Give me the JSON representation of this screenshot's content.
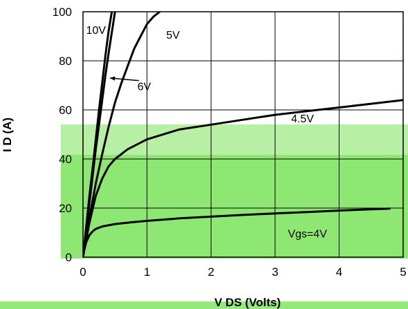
{
  "chart_data": {
    "type": "line",
    "title": "",
    "xlabel": "V DS (Volts)",
    "ylabel": "I D (A)",
    "xlim": [
      0,
      5
    ],
    "ylim": [
      0,
      100
    ],
    "x_ticks": [
      "0",
      "1",
      "2",
      "3",
      "4",
      "5"
    ],
    "y_ticks": [
      "0",
      "20",
      "40",
      "60",
      "80",
      "100"
    ],
    "grid": true,
    "series": [
      {
        "name": "10V",
        "x": [
          0,
          0.02,
          0.05,
          0.1,
          0.15,
          0.2,
          0.25,
          0.3,
          0.35,
          0.4,
          0.45
        ],
        "y": [
          0,
          5,
          12,
          25,
          36,
          48,
          60,
          71,
          82,
          92,
          100
        ]
      },
      {
        "name": "6V",
        "x": [
          0,
          0.02,
          0.05,
          0.1,
          0.15,
          0.2,
          0.25,
          0.3,
          0.35,
          0.4,
          0.5
        ],
        "y": [
          0,
          4,
          11,
          22,
          33,
          44,
          54,
          64,
          74,
          83,
          100
        ]
      },
      {
        "name": "5V",
        "x": [
          0,
          0.05,
          0.1,
          0.2,
          0.3,
          0.4,
          0.5,
          0.6,
          0.7,
          0.8,
          0.9,
          1.0,
          1.1,
          1.2
        ],
        "y": [
          0,
          8,
          16,
          30,
          42,
          53,
          63,
          71,
          78,
          85,
          90,
          95,
          98,
          100
        ]
      },
      {
        "name": "4.5V",
        "x": [
          0,
          0.05,
          0.1,
          0.2,
          0.3,
          0.4,
          0.5,
          0.7,
          1.0,
          1.5,
          2.0,
          2.5,
          3.0,
          3.5,
          4.0,
          4.5,
          5.0
        ],
        "y": [
          0,
          7,
          14,
          25,
          32,
          37,
          40,
          44,
          48,
          52,
          54,
          56,
          58,
          59.5,
          61,
          62.5,
          64
        ]
      },
      {
        "name": "Vgs=4V",
        "x": [
          0,
          0.02,
          0.05,
          0.1,
          0.15,
          0.2,
          0.3,
          0.5,
          0.75,
          1.0,
          1.5,
          2.0,
          2.5,
          3.0,
          3.5,
          4.0,
          4.5,
          4.8
        ],
        "y": [
          0,
          3,
          6,
          9,
          10.5,
          11.5,
          12.5,
          13.5,
          14.2,
          14.8,
          15.8,
          16.5,
          17.2,
          17.8,
          18.4,
          19,
          19.5,
          19.8
        ]
      }
    ],
    "curve_labels": [
      {
        "text": "10V",
        "x": 0.05,
        "y": 91
      },
      {
        "text": "5V",
        "x": 1.3,
        "y": 89
      },
      {
        "text": "6V",
        "x": 0.85,
        "y": 68
      },
      {
        "text": "4.5V",
        "x": 3.25,
        "y": 55
      },
      {
        "text": "Vgs=4V",
        "x": 3.2,
        "y": 8
      }
    ],
    "accent_color": "#7be35a",
    "line_color": "#000000"
  }
}
